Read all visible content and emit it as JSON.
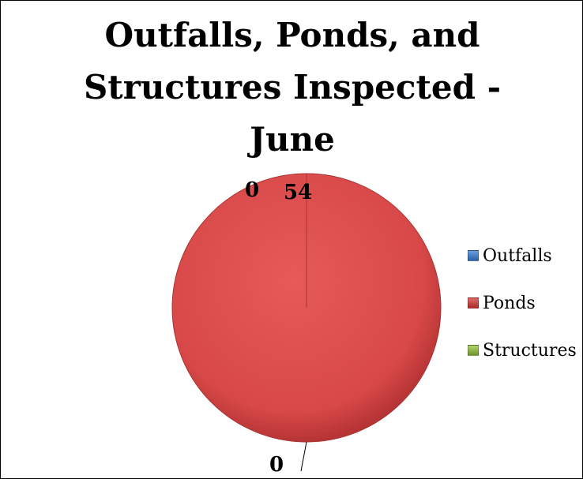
{
  "chart_data": {
    "type": "pie",
    "title_lines": [
      "Outfalls, Ponds, and",
      "Structures Inspected -",
      "June"
    ],
    "categories": [
      "Outfalls",
      "Ponds",
      "Structures"
    ],
    "values": [
      0,
      54,
      0
    ],
    "data_labels": [
      "0",
      "54",
      "0"
    ],
    "colors": [
      "#3a78c3",
      "#c0393b",
      "#8fb547"
    ],
    "legend_position": "right"
  }
}
